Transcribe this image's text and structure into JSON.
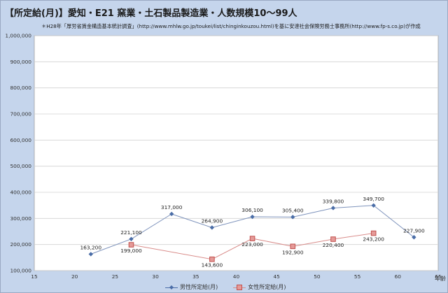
{
  "chart_data": {
    "type": "line",
    "title": "【所定給(月)】愛知・E21 窯業・土石製品製造業・人数規模10～99人",
    "subtitle": "＊H28年「厚労省賃金構造基本統計調査」(http://www.mhlw.go.jp/toukei/list/chinginkouzou.html)を基に安達社会保険労務士事務所(http://www.fp-s.co.jp)が作成",
    "xlabel": "年齢",
    "ylabel": "",
    "xlim": [
      15,
      65
    ],
    "ylim": [
      100000,
      1000000
    ],
    "x_ticks": [
      15,
      20,
      25,
      30,
      35,
      40,
      45,
      50,
      55,
      60,
      65
    ],
    "y_ticks": [
      100000,
      200000,
      300000,
      400000,
      500000,
      600000,
      700000,
      800000,
      900000,
      1000000
    ],
    "y_tick_labels": [
      "100,000",
      "200,000",
      "300,000",
      "400,000",
      "500,000",
      "600,000",
      "700,000",
      "800,000",
      "900,000",
      "1,000,000"
    ],
    "grid": "horizontal",
    "legend_position": "bottom",
    "series": [
      {
        "name": "男性所定給(月)",
        "color": "#4a6da7",
        "marker": "diamond",
        "x": [
          22,
          27,
          32,
          37,
          42,
          47,
          52,
          57,
          62
        ],
        "values": [
          163200,
          221100,
          317000,
          264900,
          306100,
          305400,
          339800,
          349700,
          227900
        ],
        "labels": [
          "163,200",
          "221,100",
          "317,000",
          "264,900",
          "306,100",
          "305,400",
          "339,800",
          "349,700",
          "227,900"
        ]
      },
      {
        "name": "女性所定給(月)",
        "color": "#c0504d",
        "marker": "square",
        "x": [
          27,
          37,
          42,
          47,
          52,
          57
        ],
        "values": [
          199000,
          143600,
          223000,
          192900,
          220400,
          243200
        ],
        "labels": [
          "199,000",
          "143,600",
          "223,000",
          "192,900",
          "220,400",
          "243,200"
        ]
      }
    ]
  }
}
